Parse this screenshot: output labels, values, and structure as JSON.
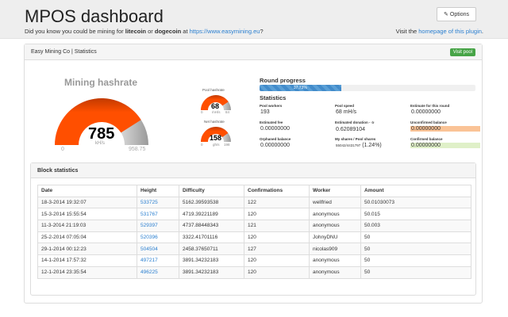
{
  "header": {
    "title": "MPOS dashboard",
    "options_label": "Options",
    "options_icon": "wrench-icon",
    "tagline_prefix": "Did you know you could be mining for ",
    "coin1": "litecoin",
    "tagline_or": " or ",
    "coin2": "dogecoin",
    "tagline_at": " at ",
    "tagline_link": "https://www.easymining.eu",
    "tagline_suffix": "?",
    "visit_prefix": "Visit the ",
    "visit_link": "homepage of this plugin",
    "visit_suffix": "."
  },
  "panel": {
    "title": "Easy Mining Co | Statistics",
    "visit_pool_label": "Visit pool"
  },
  "mining_gauge": {
    "title": "Mining hashrate",
    "value": "785",
    "unit": "kH/s",
    "min": "0",
    "max": "958.75",
    "fraction": 0.8188,
    "fill_color": "#ff4f00"
  },
  "pool_gauge": {
    "title": "Pool hashrate",
    "value": "68",
    "unit": "mH/s",
    "min": "0",
    "max": "84",
    "fraction": 0.81
  },
  "net_gauge": {
    "title": "Net hashrate",
    "value": "158",
    "unit": "gh/s",
    "min": "0",
    "max": "198",
    "fraction": 0.8
  },
  "round": {
    "title": "Round progress",
    "percent_label": "37.73%",
    "percent": 37.73
  },
  "statistics": {
    "title": "Statistics",
    "pool_workers_label": "Pool workers",
    "pool_workers": "193",
    "pool_speed_label": "Pool speed",
    "pool_speed": "68 mH/s",
    "estimate_label": "Estimate for this round",
    "estimate": "0.00000000",
    "est_fee_label": "Estimated fee",
    "est_fee": "0.00000000",
    "est_donation_label": "Estimated donation - ☆",
    "est_donation": "0.62089104",
    "unconfirmed_label": "Unconfirmed balance",
    "unconfirmed": "0.00000000",
    "orphaned_label": "Orphaned balance",
    "orphaned": "0.00000000",
    "shares_label": "My shares / Pool shares",
    "shares": "55042/4431797",
    "shares_pct": "(1.24%)",
    "confirmed_label": "Confirmed balance",
    "confirmed": "0.00000000"
  },
  "blocks": {
    "title": "Block statistics",
    "columns": [
      "Date",
      "Height",
      "Difficulty",
      "Confirmations",
      "Worker",
      "Amount"
    ],
    "rows": [
      [
        "18-3-2014 19:32:07",
        "533725",
        "5162.39593538",
        "122",
        "wellfried",
        "50.01030073"
      ],
      [
        "15-3-2014 15:55:54",
        "531767",
        "4719.39221189",
        "120",
        "anonymous",
        "50.015"
      ],
      [
        "11-3-2014 21:19:03",
        "529397",
        "4737.88448343",
        "121",
        "anonymous",
        "50.003"
      ],
      [
        "25-2-2014 07:05:04",
        "520396",
        "3322.41701116",
        "120",
        "JohnyDNU",
        "50"
      ],
      [
        "29-1-2014 00:12:23",
        "504504",
        "2458.37650711",
        "127",
        "nicolas909",
        "50"
      ],
      [
        "14-1-2014 17:57:32",
        "497217",
        "3891.34232183",
        "120",
        "anonymous",
        "50"
      ],
      [
        "12-1-2014 23:35:54",
        "496225",
        "3891.34232183",
        "120",
        "anonymous",
        "50"
      ]
    ]
  }
}
